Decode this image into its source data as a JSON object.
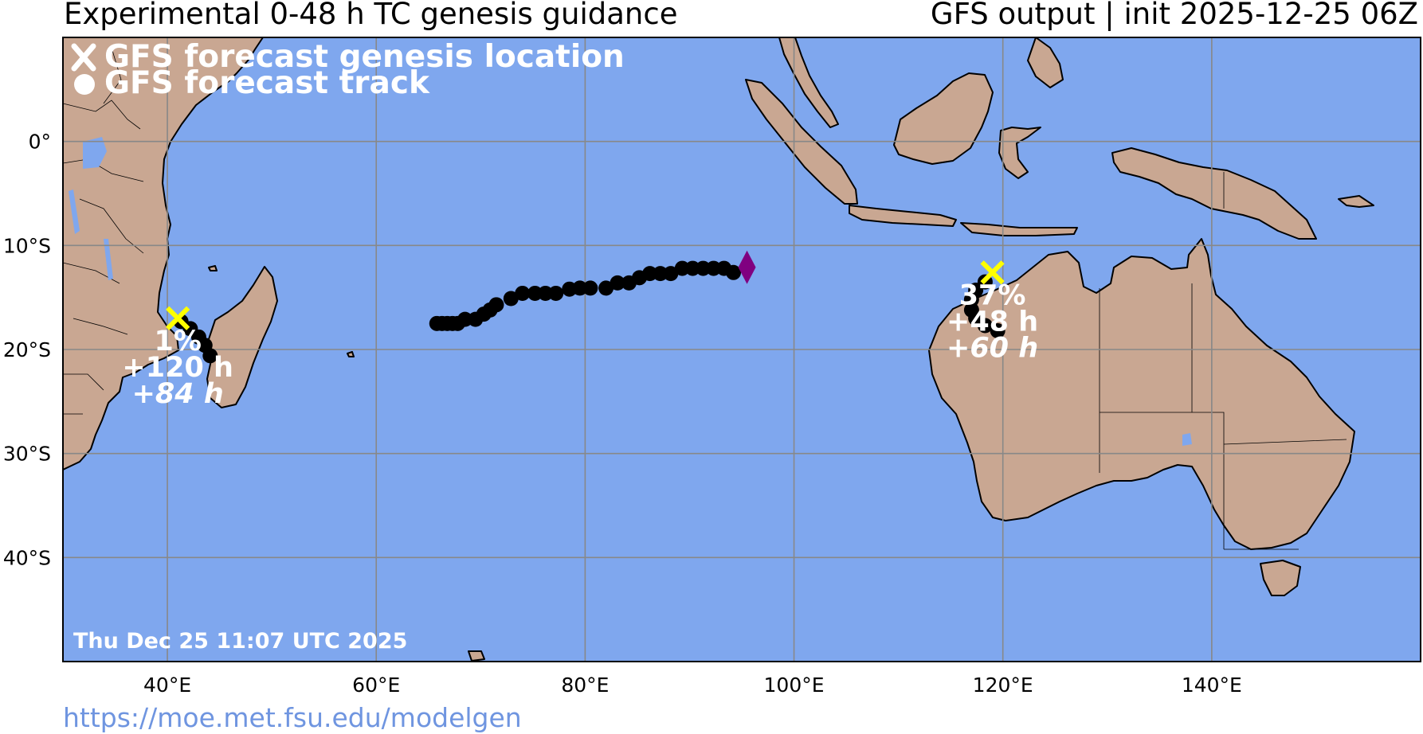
{
  "header": {
    "title_left": "Experimental 0-48 h TC genesis guidance",
    "title_right": "GFS output | init 2025-12-25 06Z"
  },
  "legend": {
    "genesis_label": "GFS forecast genesis location",
    "track_label": "GFS forecast track"
  },
  "timestamp": "Thu Dec 25 11:07 UTC 2025",
  "url": "https://moe.met.fsu.edu/modelgen",
  "colors": {
    "ocean": "#7fa7ee",
    "land": "#c9a792",
    "genesis_marker": "#ffff00",
    "track_dot": "#000000",
    "track_end_marker": "#800080",
    "label_text": "#ffffff",
    "url_text": "#6f95e0",
    "grid": "#888888"
  },
  "chart_data": {
    "type": "scatter",
    "xlim": [
      30,
      160
    ],
    "ylim": [
      -50,
      10
    ],
    "x_ticks": [
      {
        "value": 40,
        "label": "40°E"
      },
      {
        "value": 60,
        "label": "60°E"
      },
      {
        "value": 80,
        "label": "80°E"
      },
      {
        "value": 100,
        "label": "100°E"
      },
      {
        "value": 120,
        "label": "120°E"
      },
      {
        "value": 140,
        "label": "140°E"
      }
    ],
    "y_ticks": [
      {
        "value": 0,
        "label": "0°"
      },
      {
        "value": -10,
        "label": "10°S"
      },
      {
        "value": -20,
        "label": "20°S"
      },
      {
        "value": -30,
        "label": "30°S"
      },
      {
        "value": -40,
        "label": "40°S"
      }
    ],
    "grid": true,
    "legend_position": "top-left",
    "tracks": [
      {
        "points": [
          [
            65.8,
            -17.5
          ],
          [
            66.3,
            -17.5
          ],
          [
            66.8,
            -17.5
          ],
          [
            67.3,
            -17.5
          ],
          [
            67.8,
            -17.5
          ],
          [
            68.5,
            -17.1
          ],
          [
            69.5,
            -17.1
          ],
          [
            70.3,
            -16.6
          ],
          [
            70.9,
            -16.2
          ],
          [
            71.5,
            -15.7
          ],
          [
            72.9,
            -15.1
          ],
          [
            74.0,
            -14.6
          ],
          [
            75.2,
            -14.6
          ],
          [
            76.2,
            -14.6
          ],
          [
            77.2,
            -14.6
          ],
          [
            78.5,
            -14.2
          ],
          [
            79.5,
            -14.1
          ],
          [
            80.5,
            -14.1
          ],
          [
            82.0,
            -14.1
          ],
          [
            83.1,
            -13.6
          ],
          [
            84.2,
            -13.6
          ],
          [
            85.2,
            -13.1
          ],
          [
            86.2,
            -12.7
          ],
          [
            87.2,
            -12.7
          ],
          [
            88.2,
            -12.7
          ],
          [
            89.3,
            -12.2
          ],
          [
            90.3,
            -12.2
          ],
          [
            91.3,
            -12.2
          ],
          [
            92.3,
            -12.2
          ],
          [
            93.3,
            -12.2
          ],
          [
            94.2,
            -12.6
          ]
        ],
        "end_marker": {
          "lon": 95.5,
          "lat": -12.1,
          "shape": "diamond"
        }
      },
      {
        "points": [
          [
            41.3,
            -17.3
          ],
          [
            42.2,
            -18.0
          ],
          [
            43.0,
            -18.8
          ],
          [
            43.6,
            -19.6
          ],
          [
            44.1,
            -20.6
          ]
        ],
        "genesis": {
          "lon": 41.0,
          "lat": -17.0
        },
        "probability": "1%",
        "genesis_time": "+120 h",
        "lifetime": "+84 h",
        "label_lon": 41.0
      },
      {
        "points": [
          [
            118.3,
            -13.5
          ],
          [
            117.4,
            -14.3
          ],
          [
            117.0,
            -15.2
          ],
          [
            117.0,
            -16.2
          ],
          [
            117.4,
            -17.0
          ],
          [
            118.3,
            -17.7
          ],
          [
            119.5,
            -18.2
          ]
        ],
        "genesis": {
          "lon": 119.0,
          "lat": -12.6
        },
        "probability": "37%",
        "genesis_time": "+48 h",
        "lifetime": "+60 h",
        "label_lon": 119.0
      }
    ]
  }
}
